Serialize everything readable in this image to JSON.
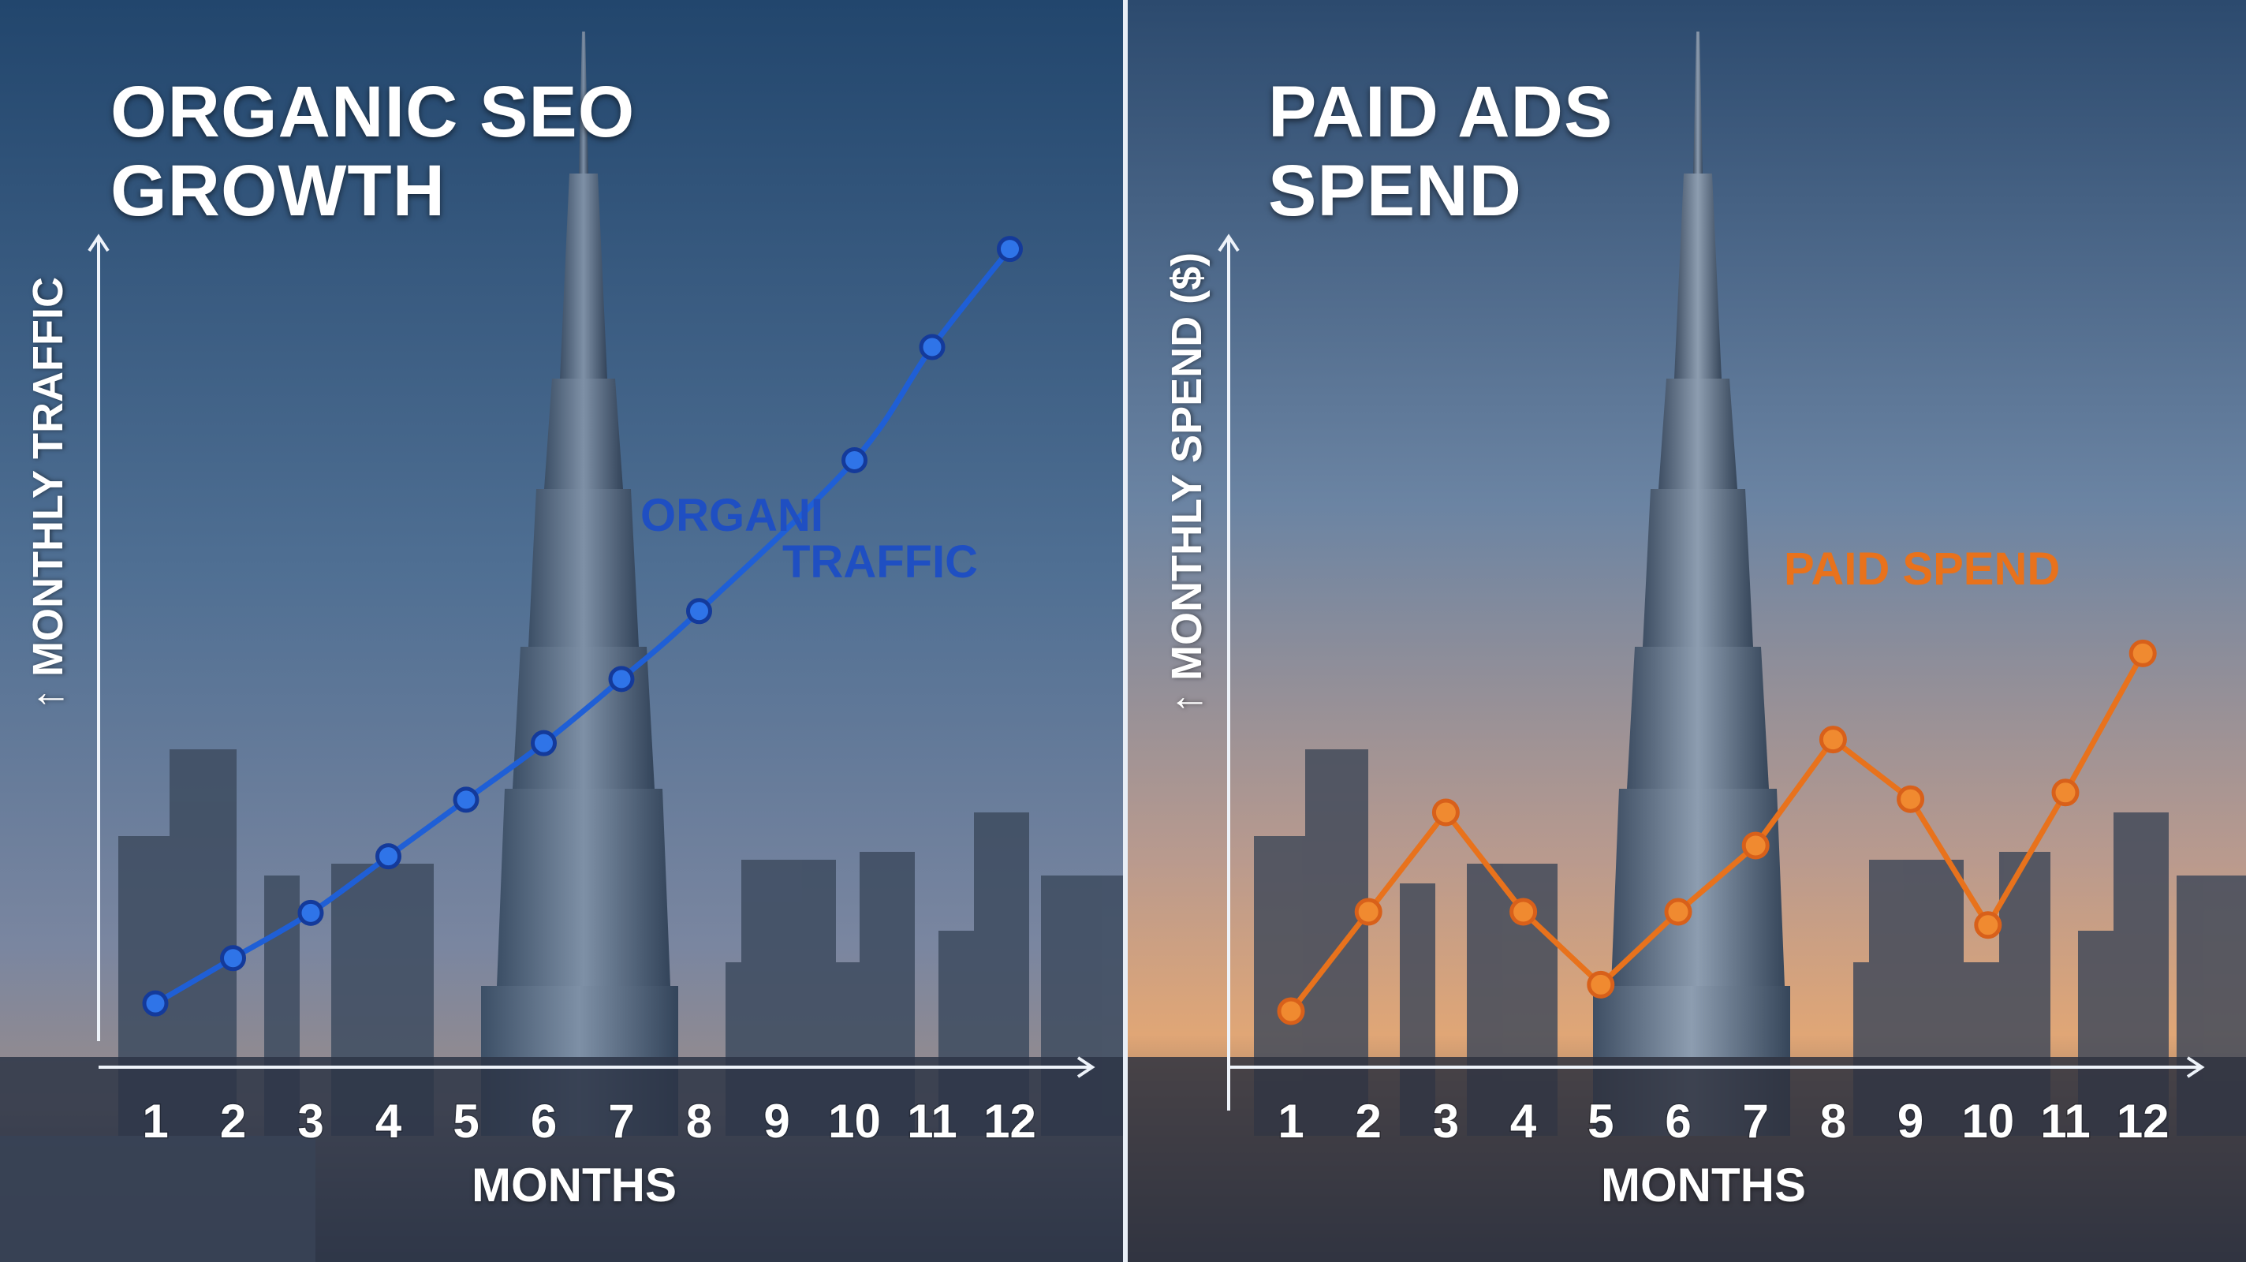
{
  "chart_data": [
    {
      "type": "line",
      "title_lines": [
        "ORGANIC SEO",
        "GROWTH"
      ],
      "xlabel": "MONTHS",
      "ylabel": "MONTHLY TRAFFIC",
      "categories": [
        "1",
        "2",
        "3",
        "4",
        "5",
        "6",
        "7",
        "8",
        "9",
        "10",
        "11",
        "12"
      ],
      "series": [
        {
          "name_lines": [
            "ORGANI",
            "TRAFFIC"
          ],
          "color": "#1f5fd6",
          "values": [
            5,
            11,
            17,
            24.5,
            32,
            39.5,
            48,
            57,
            null,
            77,
            92,
            105
          ]
        }
      ],
      "ylim": [
        0,
        115
      ],
      "grid": false,
      "legend": "inline"
    },
    {
      "type": "line",
      "title_lines": [
        "PAID ADS",
        "SPEND"
      ],
      "xlabel": "MONTHS",
      "ylabel": "MONTHLY SPEND ($)",
      "categories": [
        "1",
        "2",
        "3",
        "4",
        "5",
        "6",
        "7",
        "8",
        "9",
        "10",
        "11",
        "12"
      ],
      "series": [
        {
          "name": "PAID SPEND",
          "color": "#e8721c",
          "values": [
            15,
            30,
            45,
            30,
            19,
            30,
            40,
            56,
            47,
            28,
            48,
            69
          ]
        }
      ],
      "ylim": [
        0,
        100
      ],
      "grid": false,
      "legend": "inline"
    }
  ]
}
